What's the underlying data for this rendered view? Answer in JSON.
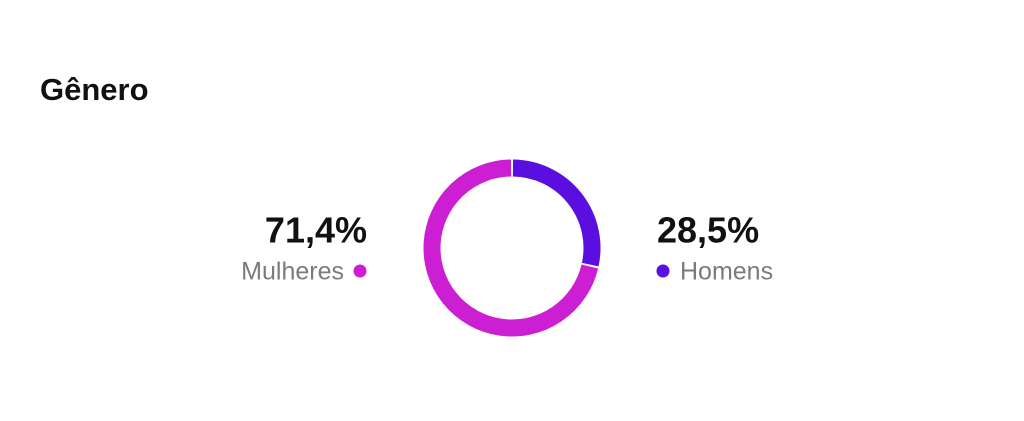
{
  "chart_data": {
    "type": "donut",
    "title": "Gênero",
    "categories": [
      "Mulheres",
      "Homens"
    ],
    "values": [
      71.4,
      28.5
    ],
    "value_labels": [
      "71,4%",
      "28,5%"
    ],
    "colors": [
      "#cc1ed3",
      "#5a0fe0"
    ]
  }
}
